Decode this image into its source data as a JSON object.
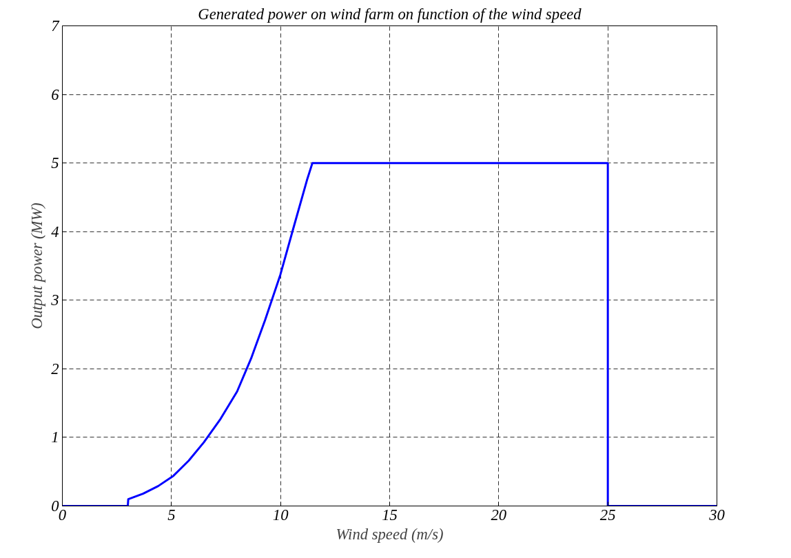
{
  "chart_data": {
    "type": "line",
    "title": "Generated power on wind farm on function of the wind speed",
    "xlabel": "Wind speed (m/s)",
    "ylabel": "Output power (MW)",
    "series": [
      {
        "color": "#0000ff",
        "x": [
          0,
          3,
          3.02,
          3.7,
          4.39,
          5.09,
          5.79,
          6.49,
          7.25,
          8.01,
          8.65,
          9.29,
          9.99,
          10.57,
          11.21,
          11.46,
          25,
          25,
          30
        ],
        "values": [
          0,
          0,
          0.1,
          0.18,
          0.29,
          0.44,
          0.66,
          0.93,
          1.27,
          1.67,
          2.15,
          2.71,
          3.37,
          4.03,
          4.75,
          5,
          5,
          0,
          0
        ]
      }
    ],
    "xlim": [
      0,
      30
    ],
    "ylim": [
      0,
      7
    ],
    "xticks": [
      0,
      5,
      10,
      15,
      20,
      25,
      30
    ],
    "yticks": [
      0,
      1,
      2,
      3,
      4,
      5,
      6,
      7
    ],
    "grid": true,
    "line_style": "solid",
    "marker": "none"
  }
}
